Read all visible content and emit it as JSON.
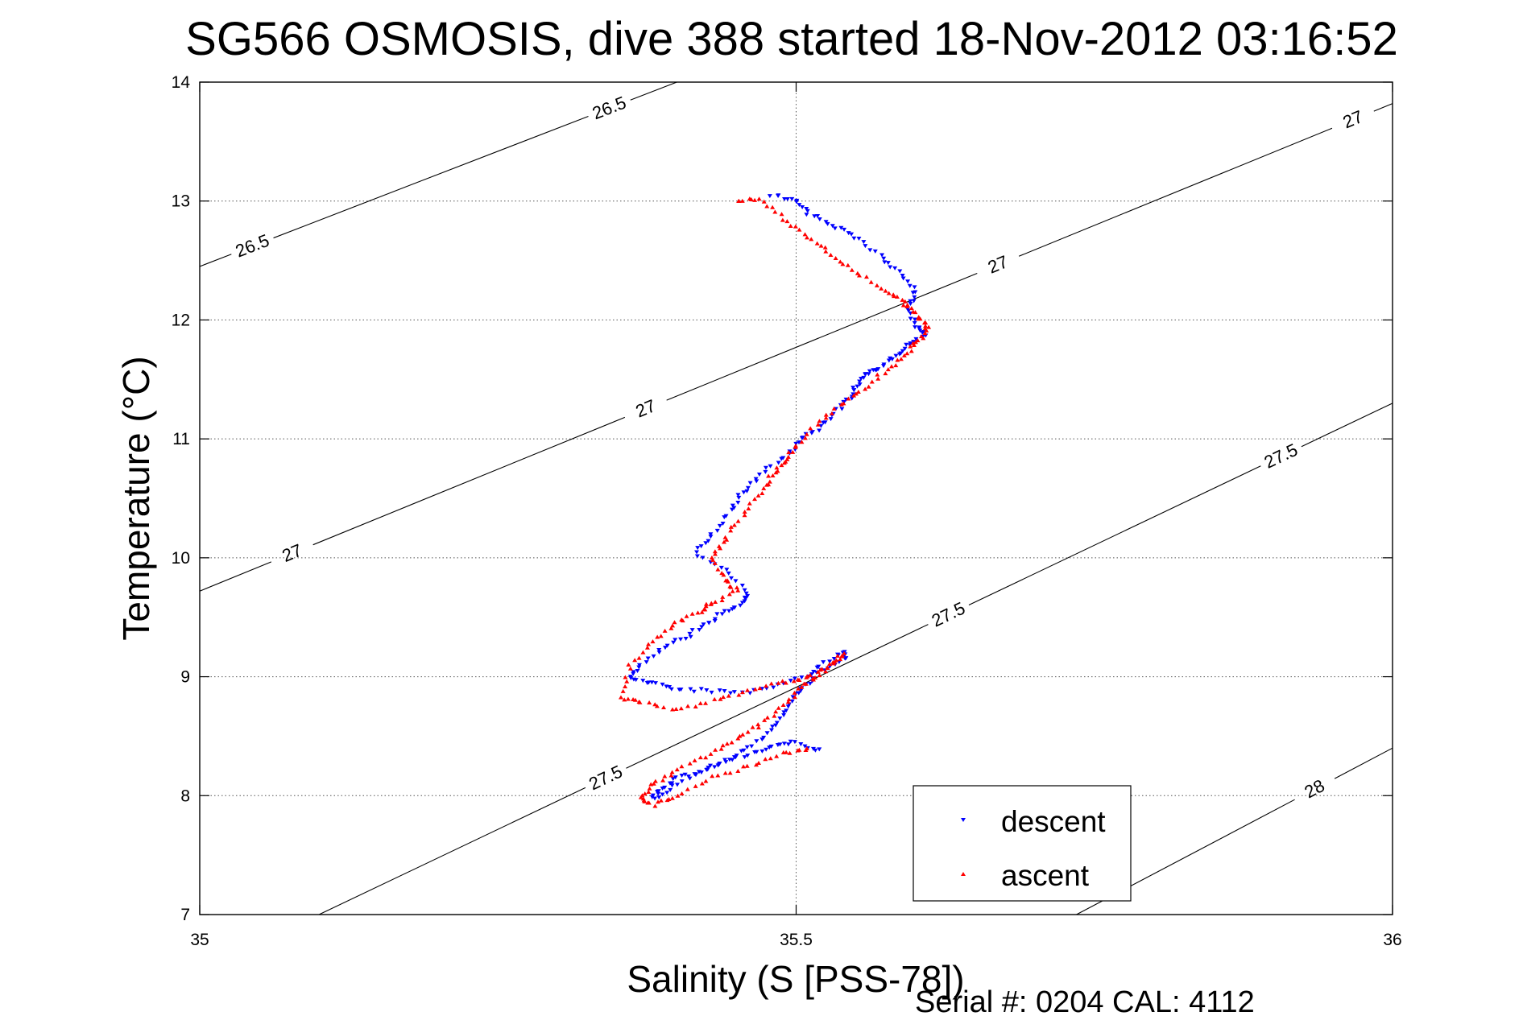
{
  "chart_data": {
    "type": "scatter",
    "title": "SG566 OSMOSIS, dive 388 started 18-Nov-2012 03:16:52",
    "xlabel": "Salinity (S [PSS-78])",
    "ylabel": "Temperature (°C)",
    "footer": "Serial #: 0204  CAL: 4112",
    "xlim": [
      35,
      36
    ],
    "ylim": [
      7,
      14
    ],
    "xticks": [
      35,
      35.5,
      36
    ],
    "xtick_labels": [
      "35",
      "35.5",
      "36"
    ],
    "yticks": [
      7,
      8,
      9,
      10,
      11,
      12,
      13,
      14
    ],
    "ytick_labels": [
      "7",
      "8",
      "9",
      "10",
      "11",
      "12",
      "13",
      "14"
    ],
    "grid": true,
    "legend_position": "bottom-right",
    "contours": [
      {
        "label": "26.5",
        "points": [
          [
            35,
            12.45
          ],
          [
            35.4,
            14.0
          ]
        ],
        "label_positions": [
          [
            35.045,
            12.6
          ],
          [
            35.345,
            13.74
          ]
        ]
      },
      {
        "label": "27",
        "points": [
          [
            35,
            9.72
          ],
          [
            36,
            13.82
          ]
        ],
        "label_positions": [
          [
            35.077,
            10.05
          ],
          [
            35.372,
            11.3
          ],
          [
            35.667,
            12.52
          ],
          [
            35.967,
            13.68
          ]
        ]
      },
      {
        "label": "27.5",
        "points": [
          [
            35.1,
            7.0
          ],
          [
            36,
            11.3
          ]
        ],
        "label_positions": [
          [
            35.338,
            8.2
          ],
          [
            35.624,
            9.6
          ],
          [
            35.902,
            10.95
          ]
        ]
      },
      {
        "label": "28",
        "points": [
          [
            35.735,
            7.0
          ],
          [
            36,
            8.4
          ]
        ],
        "label_positions": [
          [
            35.935,
            8.05
          ]
        ]
      }
    ],
    "series": [
      {
        "name": "descent",
        "color": "#0000ff",
        "marker": "triangle-down",
        "x": [
          35.48,
          35.5,
          35.51,
          35.53,
          35.55,
          35.57,
          35.585,
          35.6,
          35.595,
          35.6,
          35.61,
          35.595,
          35.585,
          35.57,
          35.56,
          35.55,
          35.545,
          35.535,
          35.52,
          35.505,
          35.49,
          35.47,
          35.455,
          35.445,
          35.43,
          35.415,
          35.44,
          35.46,
          35.455,
          35.44,
          35.425,
          35.41,
          35.39,
          35.37,
          35.36,
          35.38,
          35.4,
          35.43,
          35.46,
          35.49,
          35.52,
          35.54,
          35.54,
          35.52,
          35.51,
          35.5,
          35.49,
          35.48,
          35.46,
          35.44,
          35.42,
          35.4,
          35.385,
          35.38,
          35.4,
          35.43,
          35.46,
          35.48,
          35.5,
          35.52
        ],
        "y": [
          13.05,
          13.0,
          12.9,
          12.8,
          12.7,
          12.55,
          12.4,
          12.25,
          12.1,
          11.95,
          11.88,
          11.8,
          11.7,
          11.6,
          11.55,
          11.45,
          11.35,
          11.25,
          11.1,
          11.0,
          10.85,
          10.7,
          10.55,
          10.4,
          10.2,
          10.05,
          9.9,
          9.7,
          9.62,
          9.55,
          9.45,
          9.35,
          9.25,
          9.1,
          8.98,
          8.95,
          8.9,
          8.88,
          8.87,
          8.95,
          9.05,
          9.15,
          9.22,
          9.1,
          8.95,
          8.85,
          8.7,
          8.55,
          8.4,
          8.3,
          8.2,
          8.15,
          8.05,
          7.97,
          8.1,
          8.25,
          8.35,
          8.42,
          8.45,
          8.38
        ]
      },
      {
        "name": "ascent",
        "color": "#ff0000",
        "marker": "triangle-up",
        "x": [
          35.45,
          35.47,
          35.49,
          35.51,
          35.53,
          35.55,
          35.575,
          35.59,
          35.6,
          35.61,
          35.605,
          35.595,
          35.58,
          35.56,
          35.54,
          35.52,
          35.5,
          35.49,
          35.48,
          35.47,
          35.455,
          35.44,
          35.43,
          35.44,
          35.45,
          35.43,
          35.42,
          35.4,
          35.38,
          35.36,
          35.355,
          35.37,
          35.4,
          35.43,
          35.46,
          35.49,
          35.51,
          35.53,
          35.54,
          35.52,
          35.505,
          35.49,
          35.47,
          35.45,
          35.43,
          35.4,
          35.38,
          35.37,
          35.38,
          35.4,
          35.43,
          35.46,
          35.49,
          35.51
        ],
        "y": [
          13.0,
          13.02,
          12.85,
          12.7,
          12.55,
          12.4,
          12.25,
          12.15,
          12.05,
          11.95,
          11.85,
          11.75,
          11.6,
          11.45,
          11.3,
          11.15,
          10.95,
          10.8,
          10.7,
          10.55,
          10.35,
          10.15,
          10.0,
          9.82,
          9.72,
          9.62,
          9.55,
          9.45,
          9.3,
          9.1,
          8.82,
          8.78,
          8.72,
          8.8,
          8.88,
          8.95,
          9.0,
          9.1,
          9.2,
          9.0,
          8.92,
          8.75,
          8.6,
          8.48,
          8.35,
          8.22,
          8.1,
          7.98,
          7.92,
          8.0,
          8.15,
          8.25,
          8.35,
          8.4
        ]
      }
    ]
  }
}
